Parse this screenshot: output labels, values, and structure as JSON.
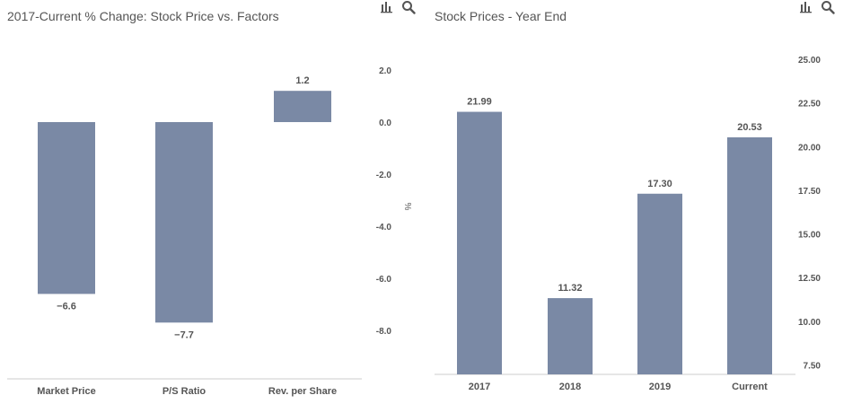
{
  "charts": {
    "left": {
      "title": "2017-Current % Change: Stock Price vs. Factors"
    },
    "right": {
      "title": "Stock Prices - Year End"
    }
  },
  "icons": [
    "bar-chart-icon",
    "search-icon"
  ],
  "colors": {
    "bar": "#7a89a5",
    "text": "#555555",
    "axis_line": "#cccccc"
  },
  "chart_data": [
    {
      "type": "bar",
      "title": "2017-Current % Change: Stock Price vs. Factors",
      "categories": [
        "Market Price",
        "P/S Ratio",
        "Rev. per Share"
      ],
      "values": [
        -6.6,
        -7.7,
        1.2
      ],
      "data_labels": [
        "−6.6",
        "−7.7",
        "1.2"
      ],
      "ylabel": "%",
      "ylim": [
        -9.5,
        2.0
      ],
      "yticks": [
        2.0,
        0.0,
        -2.0,
        -4.0,
        -6.0,
        -8.0
      ],
      "ytick_labels": [
        "2.0",
        "0.0",
        "-2.0",
        "-4.0",
        "-6.0",
        "-8.0"
      ],
      "y_axis_position": "right",
      "grid": false,
      "legend": "none"
    },
    {
      "type": "bar",
      "title": "Stock Prices - Year End",
      "categories": [
        "2017",
        "2018",
        "2019",
        "Current"
      ],
      "values": [
        21.99,
        11.32,
        17.3,
        20.53
      ],
      "data_labels": [
        "21.99",
        "11.32",
        "17.30",
        "20.53"
      ],
      "ylabel": "",
      "ylim": [
        6.5,
        25.0
      ],
      "yticks": [
        25.0,
        22.5,
        20.0,
        17.5,
        15.0,
        12.5,
        10.0,
        7.5
      ],
      "ytick_labels": [
        "25.00",
        "22.50",
        "20.00",
        "17.50",
        "15.00",
        "12.50",
        "10.00",
        "7.50"
      ],
      "y_axis_position": "right",
      "grid": false,
      "legend": "none"
    }
  ]
}
